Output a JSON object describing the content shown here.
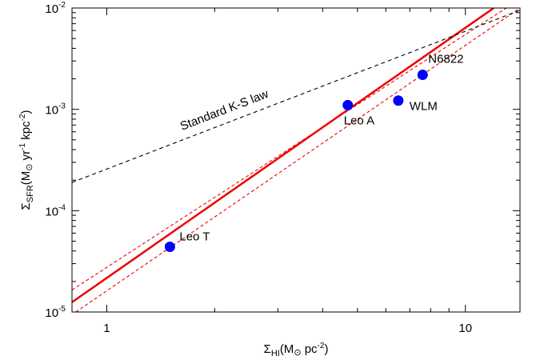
{
  "chart_data": {
    "type": "scatter",
    "title": "",
    "xlabel": "Σ_HI (M⊙ pc^-2)",
    "ylabel": "Σ_SFR (M⊙ yr^-1 kpc^-2)",
    "axis_labels": {
      "x": {
        "symbol": "Σ",
        "sub": "HI",
        "unit_open": "(M",
        "sun": "⊙",
        "unit_mid": " pc",
        "exp": "-2",
        "close": ")"
      },
      "y": {
        "symbol": "Σ",
        "sub": "SFR",
        "unit_open": "(M",
        "sun": "⊙",
        "unit_mid1": " yr",
        "exp1": "-1",
        "unit_mid2": " kpc",
        "exp2": "-2",
        "close": ")"
      }
    },
    "xscale": "log",
    "yscale": "log",
    "xlim": [
      0.8,
      14.2
    ],
    "ylim": [
      1e-05,
      0.01
    ],
    "x_ticks": [
      {
        "value": 1,
        "label": "1"
      },
      {
        "value": 10,
        "label": "10"
      }
    ],
    "y_ticks": [
      {
        "value": 1e-05,
        "base": "10",
        "exp": "-5"
      },
      {
        "value": 0.0001,
        "base": "10",
        "exp": "-4"
      },
      {
        "value": 0.001,
        "base": "10",
        "exp": "-3"
      },
      {
        "value": 0.01,
        "base": "10",
        "exp": "-2"
      }
    ],
    "grid": false,
    "points": [
      {
        "label": "Leo T",
        "x": 1.5,
        "y": 4.4e-05,
        "color": "#0000ff"
      },
      {
        "label": "Leo A",
        "x": 4.7,
        "y": 0.0011,
        "color": "#0000ff"
      },
      {
        "label": "WLM",
        "x": 6.5,
        "y": 0.00122,
        "color": "#0000ff"
      },
      {
        "label": "N6822",
        "x": 7.6,
        "y": 0.00219,
        "color": "#0000ff"
      }
    ],
    "lines": [
      {
        "role": "fit",
        "style": "solid",
        "color": "#ee0000",
        "x": [
          0.8,
          12.0
        ],
        "y": [
          1.25e-05,
          0.01
        ]
      },
      {
        "role": "fit-upper",
        "style": "dashed",
        "color": "#ee0000",
        "x": [
          0.8,
          13.0
        ],
        "y": [
          1.65e-05,
          0.01
        ]
      },
      {
        "role": "fit-lower",
        "style": "dashed",
        "color": "#ee0000",
        "x": [
          0.82,
          14.2
        ],
        "y": [
          1e-05,
          0.01
        ]
      },
      {
        "role": "ks-law",
        "label": "Standard K-S law",
        "style": "dashed",
        "color": "#000000",
        "x": [
          0.8,
          14.2
        ],
        "y": [
          0.00019,
          0.0095
        ]
      }
    ]
  }
}
